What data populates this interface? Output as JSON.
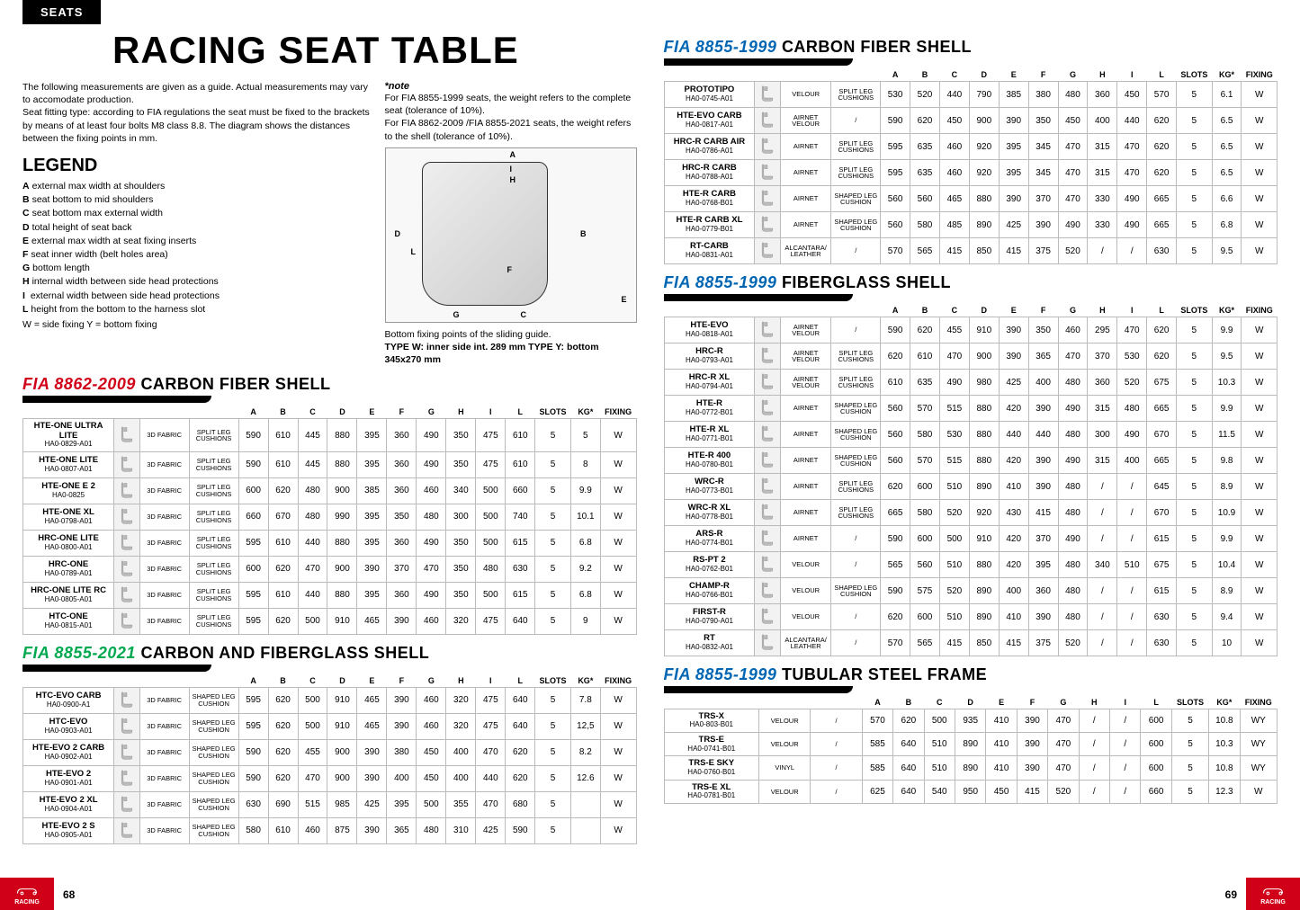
{
  "tab": "SEATS",
  "title": "RACING SEAT TABLE",
  "intro": "The following measurements are given as a guide. Actual measurements may vary to accomodate production.\nSeat fitting type: according to FIA regulations the seat must be fixed to the brackets by means of at least four bolts M8 class 8.8. The diagram shows the distances between the fixing points in mm.",
  "note_title": "*note",
  "note_text_1": "For FIA 8855-1999 seats, the weight refers to the complete seat (tolerance of 10%).",
  "note_text_2": "For FIA 8862-2009 /FIA 8855-2021 seats, the weight refers to the shell (tolerance of 10%).",
  "legend_title": "LEGEND",
  "legend": [
    {
      "k": "A",
      "v": "external max width at shoulders"
    },
    {
      "k": "B",
      "v": "seat bottom to mid shoulders"
    },
    {
      "k": "C",
      "v": "seat bottom max external width"
    },
    {
      "k": "D",
      "v": "total height of seat back"
    },
    {
      "k": "E",
      "v": "external max width at seat fixing inserts"
    },
    {
      "k": "F",
      "v": "seat inner width (belt holes area)"
    },
    {
      "k": "G",
      "v": "bottom length"
    },
    {
      "k": "H",
      "v": "internal width between side head protections"
    },
    {
      "k": "I",
      "v": " external width between side head protections"
    },
    {
      "k": "L",
      "v": "height from the bottom to the harness slot"
    }
  ],
  "legend_wy": "W = side fixing    Y = bottom fixing",
  "diagram_caption_1": "Bottom fixing points of the sliding guide.",
  "diagram_caption_2": "TYPE W: inner side int. 289 mm TYPE Y: bottom 345x270 mm",
  "headers": [
    "A",
    "B",
    "C",
    "D",
    "E",
    "F",
    "G",
    "H",
    "I",
    "L",
    "SLOTS",
    "KG*",
    "FIXING"
  ],
  "sections": {
    "s1": {
      "fia": "FIA 8862-2009",
      "title": "CARBON FIBER SHELL",
      "color": "fia-red",
      "rows": [
        {
          "n": "HTE-ONE ULTRA LITE",
          "c": "HA0-0829-A01",
          "m1": "3D FABRIC",
          "m2": "SPLIT LEG CUSHIONS",
          "v": [
            "590",
            "610",
            "445",
            "880",
            "395",
            "360",
            "490",
            "350",
            "475",
            "610",
            "5",
            "5",
            "W"
          ]
        },
        {
          "n": "HTE-ONE LITE",
          "c": "HA0-0807-A01",
          "m1": "3D FABRIC",
          "m2": "SPLIT LEG CUSHIONS",
          "v": [
            "590",
            "610",
            "445",
            "880",
            "395",
            "360",
            "490",
            "350",
            "475",
            "610",
            "5",
            "8",
            "W"
          ]
        },
        {
          "n": "HTE-ONE E 2",
          "c": "HA0-0825",
          "m1": "3D FABRIC",
          "m2": "SPLIT LEG CUSHIONS",
          "v": [
            "600",
            "620",
            "480",
            "900",
            "385",
            "360",
            "460",
            "340",
            "500",
            "660",
            "5",
            "9.9",
            "W"
          ]
        },
        {
          "n": "HTE-ONE XL",
          "c": "HA0-0798-A01",
          "m1": "3D FABRIC",
          "m2": "SPLIT LEG CUSHIONS",
          "v": [
            "660",
            "670",
            "480",
            "990",
            "395",
            "350",
            "480",
            "300",
            "500",
            "740",
            "5",
            "10.1",
            "W"
          ]
        },
        {
          "n": "HRC-ONE LITE",
          "c": "HA0-0800-A01",
          "m1": "3D FABRIC",
          "m2": "SPLIT LEG CUSHIONS",
          "v": [
            "595",
            "610",
            "440",
            "880",
            "395",
            "360",
            "490",
            "350",
            "500",
            "615",
            "5",
            "6.8",
            "W"
          ]
        },
        {
          "n": "HRC-ONE",
          "c": "HA0-0789-A01",
          "m1": "3D FABRIC",
          "m2": "SPLIT LEG CUSHIONS",
          "v": [
            "600",
            "620",
            "470",
            "900",
            "390",
            "370",
            "470",
            "350",
            "480",
            "630",
            "5",
            "9.2",
            "W"
          ]
        },
        {
          "n": "HRC-ONE LITE RC",
          "c": "HA0-0805-A01",
          "m1": "3D FABRIC",
          "m2": "SPLIT LEG CUSHIONS",
          "v": [
            "595",
            "610",
            "440",
            "880",
            "395",
            "360",
            "490",
            "350",
            "500",
            "615",
            "5",
            "6.8",
            "W"
          ]
        },
        {
          "n": "HTC-ONE",
          "c": "HA0-0815-A01",
          "m1": "3D FABRIC",
          "m2": "SPLIT LEG CUSHIONS",
          "v": [
            "595",
            "620",
            "500",
            "910",
            "465",
            "390",
            "460",
            "320",
            "475",
            "640",
            "5",
            "9",
            "W"
          ]
        }
      ]
    },
    "s2": {
      "fia": "FIA 8855-2021",
      "title": "CARBON AND FIBERGLASS SHELL",
      "color": "fia-green",
      "rows": [
        {
          "n": "HTC-EVO CARB",
          "c": "HA0-0900-A1",
          "m1": "3D FABRIC",
          "m2": "SHAPED LEG CUSHION",
          "v": [
            "595",
            "620",
            "500",
            "910",
            "465",
            "390",
            "460",
            "320",
            "475",
            "640",
            "5",
            "7.8",
            "W"
          ]
        },
        {
          "n": "HTC-EVO",
          "c": "HA0-0903-A01",
          "m1": "3D FABRIC",
          "m2": "SHAPED LEG CUSHION",
          "v": [
            "595",
            "620",
            "500",
            "910",
            "465",
            "390",
            "460",
            "320",
            "475",
            "640",
            "5",
            "12,5",
            "W"
          ]
        },
        {
          "n": "HTE-EVO 2 CARB",
          "c": "HA0-0902-A01",
          "m1": "3D FABRIC",
          "m2": "SHAPED LEG CUSHION",
          "v": [
            "590",
            "620",
            "455",
            "900",
            "390",
            "380",
            "450",
            "400",
            "470",
            "620",
            "5",
            "8.2",
            "W"
          ]
        },
        {
          "n": "HTE-EVO 2",
          "c": "HA0-0901-A01",
          "m1": "3D FABRIC",
          "m2": "SHAPED LEG CUSHION",
          "v": [
            "590",
            "620",
            "470",
            "900",
            "390",
            "400",
            "450",
            "400",
            "440",
            "620",
            "5",
            "12.6",
            "W"
          ]
        },
        {
          "n": "HTE-EVO 2 XL",
          "c": "HA0-0904-A01",
          "m1": "3D FABRIC",
          "m2": "SHAPED LEG CUSHION",
          "v": [
            "630",
            "690",
            "515",
            "985",
            "425",
            "395",
            "500",
            "355",
            "470",
            "680",
            "5",
            "",
            "W"
          ]
        },
        {
          "n": "HTE-EVO 2 S",
          "c": "HA0-0905-A01",
          "m1": "3D FABRIC",
          "m2": "SHAPED LEG CUSHION",
          "v": [
            "580",
            "610",
            "460",
            "875",
            "390",
            "365",
            "480",
            "310",
            "425",
            "590",
            "5",
            "",
            "W"
          ]
        }
      ]
    },
    "s3": {
      "fia": "FIA 8855-1999",
      "title": "CARBON FIBER SHELL",
      "color": "fia-blue",
      "rows": [
        {
          "n": "PROTOTIPO",
          "c": "HA0-0745-A01",
          "m1": "VELOUR",
          "m2": "SPLIT LEG CUSHIONS",
          "v": [
            "530",
            "520",
            "440",
            "790",
            "385",
            "380",
            "480",
            "360",
            "450",
            "570",
            "5",
            "6.1",
            "W"
          ]
        },
        {
          "n": "HTE-EVO CARB",
          "c": "HA0-0817-A01",
          "m1": "AIRNET VELOUR",
          "m2": "/",
          "v": [
            "590",
            "620",
            "450",
            "900",
            "390",
            "350",
            "450",
            "400",
            "440",
            "620",
            "5",
            "6.5",
            "W"
          ]
        },
        {
          "n": "HRC-R CARB AIR",
          "c": "HA0-0786-A01",
          "m1": "AIRNET",
          "m2": "SPLIT LEG CUSHIONS",
          "v": [
            "595",
            "635",
            "460",
            "920",
            "395",
            "345",
            "470",
            "315",
            "470",
            "620",
            "5",
            "6.5",
            "W"
          ]
        },
        {
          "n": "HRC-R CARB",
          "c": "HA0-0788-A01",
          "m1": "AIRNET",
          "m2": "SPLIT LEG CUSHIONS",
          "v": [
            "595",
            "635",
            "460",
            "920",
            "395",
            "345",
            "470",
            "315",
            "470",
            "620",
            "5",
            "6.5",
            "W"
          ]
        },
        {
          "n": "HTE-R CARB",
          "c": "HA0-0768-B01",
          "m1": "AIRNET",
          "m2": "SHAPED LEG CUSHION",
          "v": [
            "560",
            "560",
            "465",
            "880",
            "390",
            "370",
            "470",
            "330",
            "490",
            "665",
            "5",
            "6.6",
            "W"
          ]
        },
        {
          "n": "HTE-R CARB XL",
          "c": "HA0-0779-B01",
          "m1": "AIRNET",
          "m2": "SHAPED LEG CUSHION",
          "v": [
            "560",
            "580",
            "485",
            "890",
            "425",
            "390",
            "490",
            "330",
            "490",
            "665",
            "5",
            "6.8",
            "W"
          ]
        },
        {
          "n": "RT-CARB",
          "c": "HA0-0831-A01",
          "m1": "ALCANTARA/ LEATHER",
          "m2": "/",
          "v": [
            "570",
            "565",
            "415",
            "850",
            "415",
            "375",
            "520",
            "/",
            "/",
            "630",
            "5",
            "9.5",
            "W"
          ]
        }
      ]
    },
    "s4": {
      "fia": "FIA 8855-1999",
      "title": "FIBERGLASS SHELL",
      "color": "fia-blue",
      "rows": [
        {
          "n": "HTE-EVO",
          "c": "HA0-0818-A01",
          "m1": "AIRNET VELOUR",
          "m2": "/",
          "v": [
            "590",
            "620",
            "455",
            "910",
            "390",
            "350",
            "460",
            "295",
            "470",
            "620",
            "5",
            "9.9",
            "W"
          ]
        },
        {
          "n": "HRC-R",
          "c": "HA0-0793-A01",
          "m1": "AIRNET VELOUR",
          "m2": "SPLIT LEG CUSHIONS",
          "v": [
            "620",
            "610",
            "470",
            "900",
            "390",
            "365",
            "470",
            "370",
            "530",
            "620",
            "5",
            "9.5",
            "W"
          ]
        },
        {
          "n": "HRC-R XL",
          "c": "HA0-0794-A01",
          "m1": "AIRNET VELOUR",
          "m2": "SPLIT LEG CUSHIONS",
          "v": [
            "610",
            "635",
            "490",
            "980",
            "425",
            "400",
            "480",
            "360",
            "520",
            "675",
            "5",
            "10.3",
            "W"
          ]
        },
        {
          "n": "HTE-R",
          "c": "HA0-0772-B01",
          "m1": "AIRNET",
          "m2": "SHAPED LEG CUSHION",
          "v": [
            "560",
            "570",
            "515",
            "880",
            "420",
            "390",
            "490",
            "315",
            "480",
            "665",
            "5",
            "9.9",
            "W"
          ]
        },
        {
          "n": "HTE-R XL",
          "c": "HA0-0771-B01",
          "m1": "AIRNET",
          "m2": "SHAPED LEG CUSHION",
          "v": [
            "560",
            "580",
            "530",
            "880",
            "440",
            "440",
            "480",
            "300",
            "490",
            "670",
            "5",
            "11.5",
            "W"
          ]
        },
        {
          "n": "HTE-R 400",
          "c": "HA0-0780-B01",
          "m1": "AIRNET",
          "m2": "SHAPED LEG CUSHION",
          "v": [
            "560",
            "570",
            "515",
            "880",
            "420",
            "390",
            "490",
            "315",
            "400",
            "665",
            "5",
            "9.8",
            "W"
          ]
        },
        {
          "n": "WRC-R",
          "c": "HA0-0773-B01",
          "m1": "AIRNET",
          "m2": "SPLIT LEG CUSHIONS",
          "v": [
            "620",
            "600",
            "510",
            "890",
            "410",
            "390",
            "480",
            "/",
            "/",
            "645",
            "5",
            "8.9",
            "W"
          ]
        },
        {
          "n": "WRC-R XL",
          "c": "HA0-0778-B01",
          "m1": "AIRNET",
          "m2": "SPLIT LEG CUSHIONS",
          "v": [
            "665",
            "580",
            "520",
            "920",
            "430",
            "415",
            "480",
            "/",
            "/",
            "670",
            "5",
            "10.9",
            "W"
          ]
        },
        {
          "n": "ARS-R",
          "c": "HA0-0774-B01",
          "m1": "AIRNET",
          "m2": "/",
          "v": [
            "590",
            "600",
            "500",
            "910",
            "420",
            "370",
            "490",
            "/",
            "/",
            "615",
            "5",
            "9.9",
            "W"
          ]
        },
        {
          "n": "RS-PT 2",
          "c": "HA0-0762-B01",
          "m1": "VELOUR",
          "m2": "/",
          "v": [
            "565",
            "560",
            "510",
            "880",
            "420",
            "395",
            "480",
            "340",
            "510",
            "675",
            "5",
            "10.4",
            "W"
          ]
        },
        {
          "n": "CHAMP-R",
          "c": "HA0-0766-B01",
          "m1": "VELOUR",
          "m2": "SHAPED LEG CUSHION",
          "v": [
            "590",
            "575",
            "520",
            "890",
            "400",
            "360",
            "480",
            "/",
            "/",
            "615",
            "5",
            "8.9",
            "W"
          ]
        },
        {
          "n": "FIRST-R",
          "c": "HA0-0790-A01",
          "m1": "VELOUR",
          "m2": "/",
          "v": [
            "620",
            "600",
            "510",
            "890",
            "410",
            "390",
            "480",
            "/",
            "/",
            "630",
            "5",
            "9.4",
            "W"
          ]
        },
        {
          "n": "RT",
          "c": "HA0-0832-A01",
          "m1": "ALCANTARA/ LEATHER",
          "m2": "/",
          "v": [
            "570",
            "565",
            "415",
            "850",
            "415",
            "375",
            "520",
            "/",
            "/",
            "630",
            "5",
            "10",
            "W"
          ]
        }
      ]
    },
    "s5": {
      "fia": "FIA 8855-1999",
      "title": "TUBULAR STEEL FRAME",
      "color": "fia-blue",
      "rows": [
        {
          "n": "TRS-X",
          "c": "HA0-803-B01",
          "m1": "VELOUR",
          "m2": "/",
          "v": [
            "570",
            "620",
            "500",
            "935",
            "410",
            "390",
            "470",
            "/",
            "/",
            "600",
            "5",
            "10.8",
            "WY"
          ]
        },
        {
          "n": "TRS-E",
          "c": "HA0-0741-B01",
          "m1": "VELOUR",
          "m2": "/",
          "v": [
            "585",
            "640",
            "510",
            "890",
            "410",
            "390",
            "470",
            "/",
            "/",
            "600",
            "5",
            "10.3",
            "WY"
          ]
        },
        {
          "n": "TRS-E SKY",
          "c": "HA0-0760-B01",
          "m1": "VINYL",
          "m2": "/",
          "v": [
            "585",
            "640",
            "510",
            "890",
            "410",
            "390",
            "470",
            "/",
            "/",
            "600",
            "5",
            "10.8",
            "WY"
          ]
        },
        {
          "n": "TRS-E XL",
          "c": "HA0-0781-B01",
          "m1": "VELOUR",
          "m2": "/",
          "v": [
            "625",
            "640",
            "540",
            "950",
            "450",
            "415",
            "520",
            "/",
            "/",
            "660",
            "5",
            "12.3",
            "W"
          ]
        }
      ]
    }
  },
  "page_left": "68",
  "page_right": "69",
  "footer_label": "RACING"
}
